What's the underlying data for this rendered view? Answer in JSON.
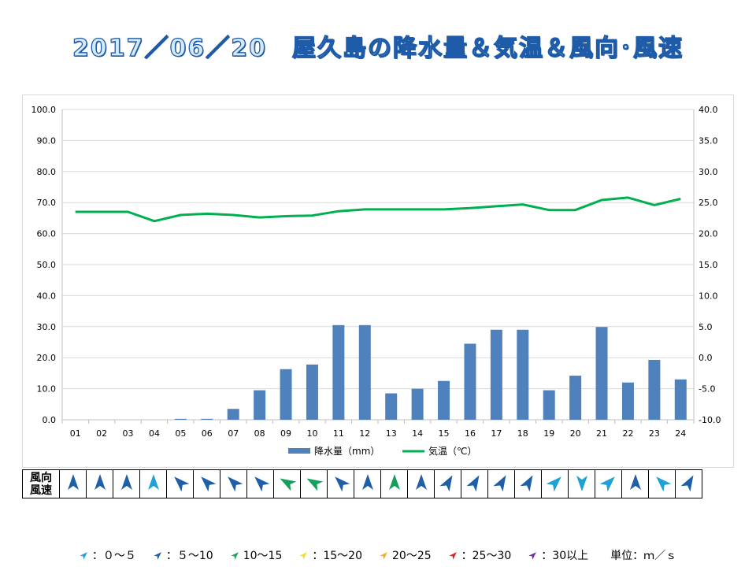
{
  "title": "2017／06／20　屋久島の降水量＆気温＆風向･風速",
  "chart_data": {
    "type": "bar+line",
    "categories": [
      "01",
      "02",
      "03",
      "04",
      "05",
      "06",
      "07",
      "08",
      "09",
      "10",
      "11",
      "12",
      "13",
      "14",
      "15",
      "16",
      "17",
      "18",
      "19",
      "20",
      "21",
      "22",
      "23",
      "24"
    ],
    "series": [
      {
        "name": "降水量（mm）",
        "type": "bar",
        "axis": "left",
        "color": "#4f81bd",
        "values": [
          0,
          0,
          0,
          0,
          0.3,
          0.3,
          3.5,
          9.5,
          16.3,
          17.8,
          30.5,
          30.5,
          8.5,
          10,
          12.5,
          24.5,
          29,
          29,
          9.5,
          14.2,
          29.9,
          12,
          19.3,
          13
        ]
      },
      {
        "name": "気温（℃）",
        "type": "line",
        "axis": "right",
        "color": "#00b050",
        "values": [
          23.5,
          23.5,
          23.5,
          22.0,
          23.0,
          23.2,
          23.0,
          22.6,
          22.8,
          22.9,
          23.6,
          23.9,
          23.9,
          23.9,
          23.9,
          24.1,
          24.4,
          24.7,
          23.8,
          23.8,
          25.4,
          25.8,
          24.6,
          25.6
        ]
      }
    ],
    "y_left": {
      "min": 0,
      "max": 100,
      "step": 10,
      "ticks": [
        "0.0",
        "10.0",
        "20.0",
        "30.0",
        "40.0",
        "50.0",
        "60.0",
        "70.0",
        "80.0",
        "90.0",
        "100.0"
      ]
    },
    "y_right": {
      "min": -10,
      "max": 40,
      "step": 5,
      "ticks": [
        "-10.0",
        "-5.0",
        "0.0",
        "5.0",
        "10.0",
        "15.0",
        "20.0",
        "25.0",
        "30.0",
        "35.0",
        "40.0"
      ]
    },
    "grid": true,
    "legend_position": "bottom"
  },
  "wind": {
    "header_top": "風向",
    "header_bottom": "風速",
    "directions_deg": [
      0,
      0,
      0,
      0,
      315,
      315,
      315,
      315,
      300,
      300,
      315,
      0,
      0,
      0,
      30,
      30,
      30,
      30,
      45,
      180,
      45,
      0,
      315,
      30
    ],
    "colors": [
      "#1f5fa8",
      "#1f5fa8",
      "#1f5fa8",
      "#1ea0d8",
      "#1f5fa8",
      "#1f5fa8",
      "#1f5fa8",
      "#1f5fa8",
      "#14a05a",
      "#14a05a",
      "#1f5fa8",
      "#1f5fa8",
      "#14a05a",
      "#1f5fa8",
      "#1f5fa8",
      "#1f5fa8",
      "#1f5fa8",
      "#1f5fa8",
      "#1ea0d8",
      "#1ea0d8",
      "#1ea0d8",
      "#1f5fa8",
      "#1ea0d8",
      "#1f5fa8"
    ]
  },
  "legend": {
    "items": [
      {
        "label": "：０～５",
        "color": "#1ea0d8"
      },
      {
        "label": "：５～10",
        "color": "#1f5fa8"
      },
      {
        "label": "10～15",
        "color": "#14a05a"
      },
      {
        "label": "：15～20",
        "color": "#f0e020"
      },
      {
        "label": "20～25",
        "color": "#f0b020"
      },
      {
        "label": "：25～30",
        "color": "#e02020"
      },
      {
        "label": "：30以上",
        "color": "#7030a0"
      }
    ],
    "unit": "単位：ｍ／ｓ"
  }
}
